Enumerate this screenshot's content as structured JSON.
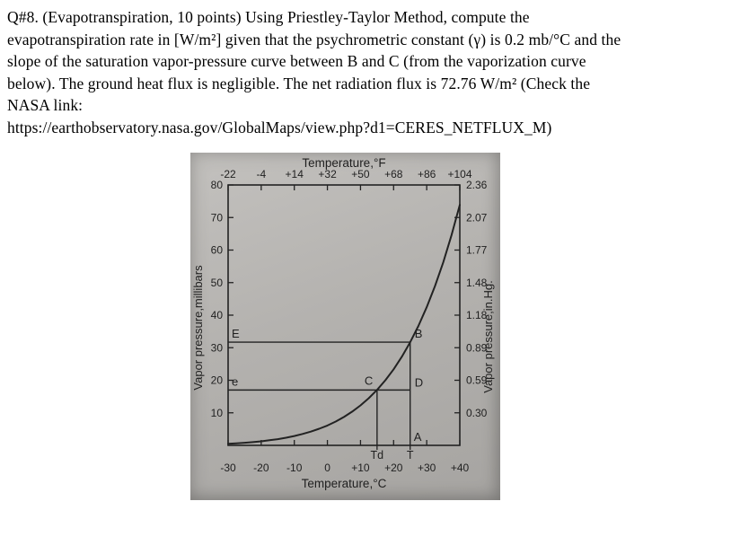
{
  "question": {
    "lines": [
      "Q#8. (Evapotranspiration, 10 points) Using Priestley-Taylor Method, compute the",
      "evapotranspiration rate in [W/m²] given that the psychrometric constant (γ) is 0.2 mb/°C and the",
      "slope of the saturation vapor-pressure curve between B and C (from the vaporization curve",
      "below). The ground heat flux is negligible. The net radiation flux is 72.76 W/m² (Check the",
      "NASA link:",
      "https://earthobservatory.nasa.gov/GlobalMaps/view.php?d1=CERES_NETFLUX_M)"
    ]
  },
  "chart_data": {
    "type": "line",
    "title_top": "Temperature,°F",
    "xlabel_bottom": "Temperature,°C",
    "ylabel_left": "Vapor pressure,millibars",
    "ylabel_right": "Vapor pressure,in.Hg.",
    "x_axis_c": {
      "range": [
        -30,
        40
      ],
      "ticks": [
        -30,
        -20,
        -10,
        0,
        10,
        20,
        30,
        40
      ],
      "labels": [
        "-30",
        "-20",
        "-10",
        "0",
        "+10",
        "+20",
        "+30",
        "+40"
      ]
    },
    "x_axis_f_labels": [
      "-22",
      "-4",
      "+14",
      "+32",
      "+50",
      "+68",
      "+86",
      "+104"
    ],
    "y_axis_mb": {
      "range": [
        0,
        80
      ],
      "ticks": [
        10,
        20,
        30,
        40,
        50,
        60,
        70,
        80
      ],
      "labels": [
        "10",
        "20",
        "30",
        "40",
        "50",
        "60",
        "70",
        "80"
      ]
    },
    "y_axis_inhg_labels": [
      "0.30",
      "0.59",
      "0.89",
      "1.18",
      "1.48",
      "1.77",
      "2.07",
      "2.36"
    ],
    "series": [
      {
        "name": "saturation-vapor-pressure-curve",
        "points": [
          [
            -30,
            0.51
          ],
          [
            -27.5,
            0.64
          ],
          [
            -25,
            0.81
          ],
          [
            -22.5,
            1.0
          ],
          [
            -20,
            1.25
          ],
          [
            -17.5,
            1.56
          ],
          [
            -15,
            1.91
          ],
          [
            -12.5,
            2.35
          ],
          [
            -10,
            2.86
          ],
          [
            -7.5,
            3.49
          ],
          [
            -5,
            4.21
          ],
          [
            -2.5,
            5.09
          ],
          [
            0,
            6.11
          ],
          [
            2.5,
            7.31
          ],
          [
            5,
            8.72
          ],
          [
            7.5,
            10.36
          ],
          [
            10,
            12.27
          ],
          [
            12.5,
            14.48
          ],
          [
            15,
            17.04
          ],
          [
            17.5,
            19.99
          ],
          [
            20,
            23.37
          ],
          [
            22.5,
            27.25
          ],
          [
            25,
            31.67
          ],
          [
            27.5,
            36.7
          ],
          [
            30,
            42.43
          ],
          [
            32.5,
            48.96
          ],
          [
            35,
            56.24
          ],
          [
            37.5,
            64.6
          ],
          [
            40,
            73.9
          ]
        ]
      }
    ],
    "annotations": {
      "air_temperature_c": 25,
      "dew_point_c": 15,
      "saturation_vapor_pressure_mb": 31.7,
      "actual_vapor_pressure_mb": 17.0,
      "point_labels": {
        "E": "E",
        "B": "B",
        "C": "C",
        "D": "D",
        "e": "e",
        "A": "A",
        "Td": "Td",
        "T": "T"
      }
    }
  },
  "colors": {
    "paper": "#ffffff",
    "photo_gray": "#b4b2af",
    "ink": "#222222"
  }
}
